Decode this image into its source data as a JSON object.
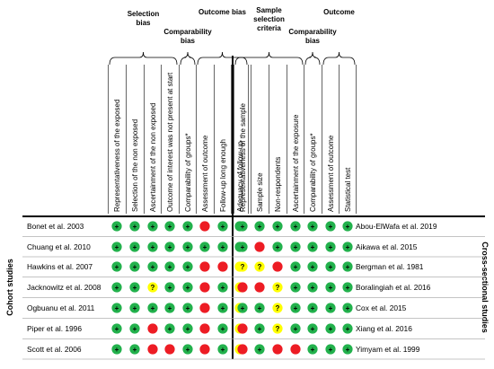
{
  "colors": {
    "low_risk": "#22b14c",
    "some_concerns": "#ffff00",
    "high_risk": "#ed1c24",
    "line": "#000000",
    "row_line": "#b0b0b0"
  },
  "symbols": {
    "low_risk": "+",
    "some_concerns": "?",
    "high_risk": ""
  },
  "cohort": {
    "side_label": "Cohort studies",
    "groups": [
      {
        "label_lines": [
          "Selection",
          "bias"
        ],
        "span": [
          0,
          3
        ]
      },
      {
        "label_lines": [
          "Comparability",
          "bias"
        ],
        "span": [
          4,
          4
        ]
      },
      {
        "label_lines": [
          "Outcome bias"
        ],
        "span": [
          5,
          7
        ]
      }
    ],
    "columns": [
      "Representativeness of the exposed",
      "Selection of the non exposed",
      "Ascertainment of the non exposed",
      "Outcome of interest was not present at start",
      "Comparability of groups*",
      "Assessment of outcome",
      "Follow-up long enough",
      "Adequacy of follow-up"
    ],
    "studies": [
      {
        "name": "Bonet et al. 2003",
        "ratings": [
          "G",
          "G",
          "G",
          "G",
          "G",
          "R",
          "G",
          "G"
        ]
      },
      {
        "name": "Chuang et al. 2010",
        "ratings": [
          "G",
          "G",
          "G",
          "G",
          "G",
          "G",
          "G",
          "G"
        ]
      },
      {
        "name": "Hawkins et al. 2007",
        "ratings": [
          "G",
          "G",
          "G",
          "G",
          "G",
          "R",
          "R",
          "Y"
        ]
      },
      {
        "name": "Jacknowitz et al. 2008",
        "ratings": [
          "G",
          "G",
          "Y",
          "G",
          "G",
          "R",
          "G",
          "Y"
        ]
      },
      {
        "name": "Ogbuanu et al. 2011",
        "ratings": [
          "G",
          "G",
          "G",
          "G",
          "G",
          "R",
          "G",
          "Y"
        ]
      },
      {
        "name": "Piper et al. 1996",
        "ratings": [
          "G",
          "G",
          "R",
          "G",
          "G",
          "R",
          "G",
          "Y"
        ]
      },
      {
        "name": "Scott et al. 2006",
        "ratings": [
          "G",
          "G",
          "R",
          "R",
          "G",
          "R",
          "G",
          "Y"
        ]
      }
    ]
  },
  "cross": {
    "side_label": "Cross-sectional studies",
    "groups": [
      {
        "label_lines": [
          "Sample",
          "selection",
          "criteria"
        ],
        "span": [
          0,
          3
        ]
      },
      {
        "label_lines": [
          "Comparability",
          "bias"
        ],
        "span": [
          4,
          4
        ]
      },
      {
        "label_lines": [
          "Outcome"
        ],
        "span": [
          5,
          6
        ]
      }
    ],
    "columns": [
      "Representativeness of the sample",
      "Sample size",
      "Non-respondents",
      "Ascertainment of the exposure",
      "Comparability of groups*",
      "Assessment of outcome",
      "Statistical test"
    ],
    "studies": [
      {
        "name": "Abou-ElWafa et al. 2019",
        "ratings": [
          "G",
          "G",
          "G",
          "G",
          "G",
          "G",
          "G"
        ]
      },
      {
        "name": "Aikawa et al. 2015",
        "ratings": [
          "G",
          "R",
          "G",
          "G",
          "G",
          "G",
          "G"
        ]
      },
      {
        "name": "Bergman et al. 1981",
        "ratings": [
          "Y",
          "Y",
          "R",
          "G",
          "G",
          "G",
          "G"
        ]
      },
      {
        "name": "Boralingiah et al. 2016",
        "ratings": [
          "R",
          "R",
          "Y",
          "G",
          "G",
          "G",
          "G"
        ]
      },
      {
        "name": "Cox et al. 2015",
        "ratings": [
          "G",
          "G",
          "Y",
          "G",
          "G",
          "G",
          "G"
        ]
      },
      {
        "name": "Xiang et al. 2016",
        "ratings": [
          "R",
          "G",
          "Y",
          "G",
          "G",
          "G",
          "G"
        ]
      },
      {
        "name": "Yimyam et al. 1999",
        "ratings": [
          "R",
          "G",
          "R",
          "R",
          "G",
          "G",
          "G"
        ]
      }
    ]
  }
}
